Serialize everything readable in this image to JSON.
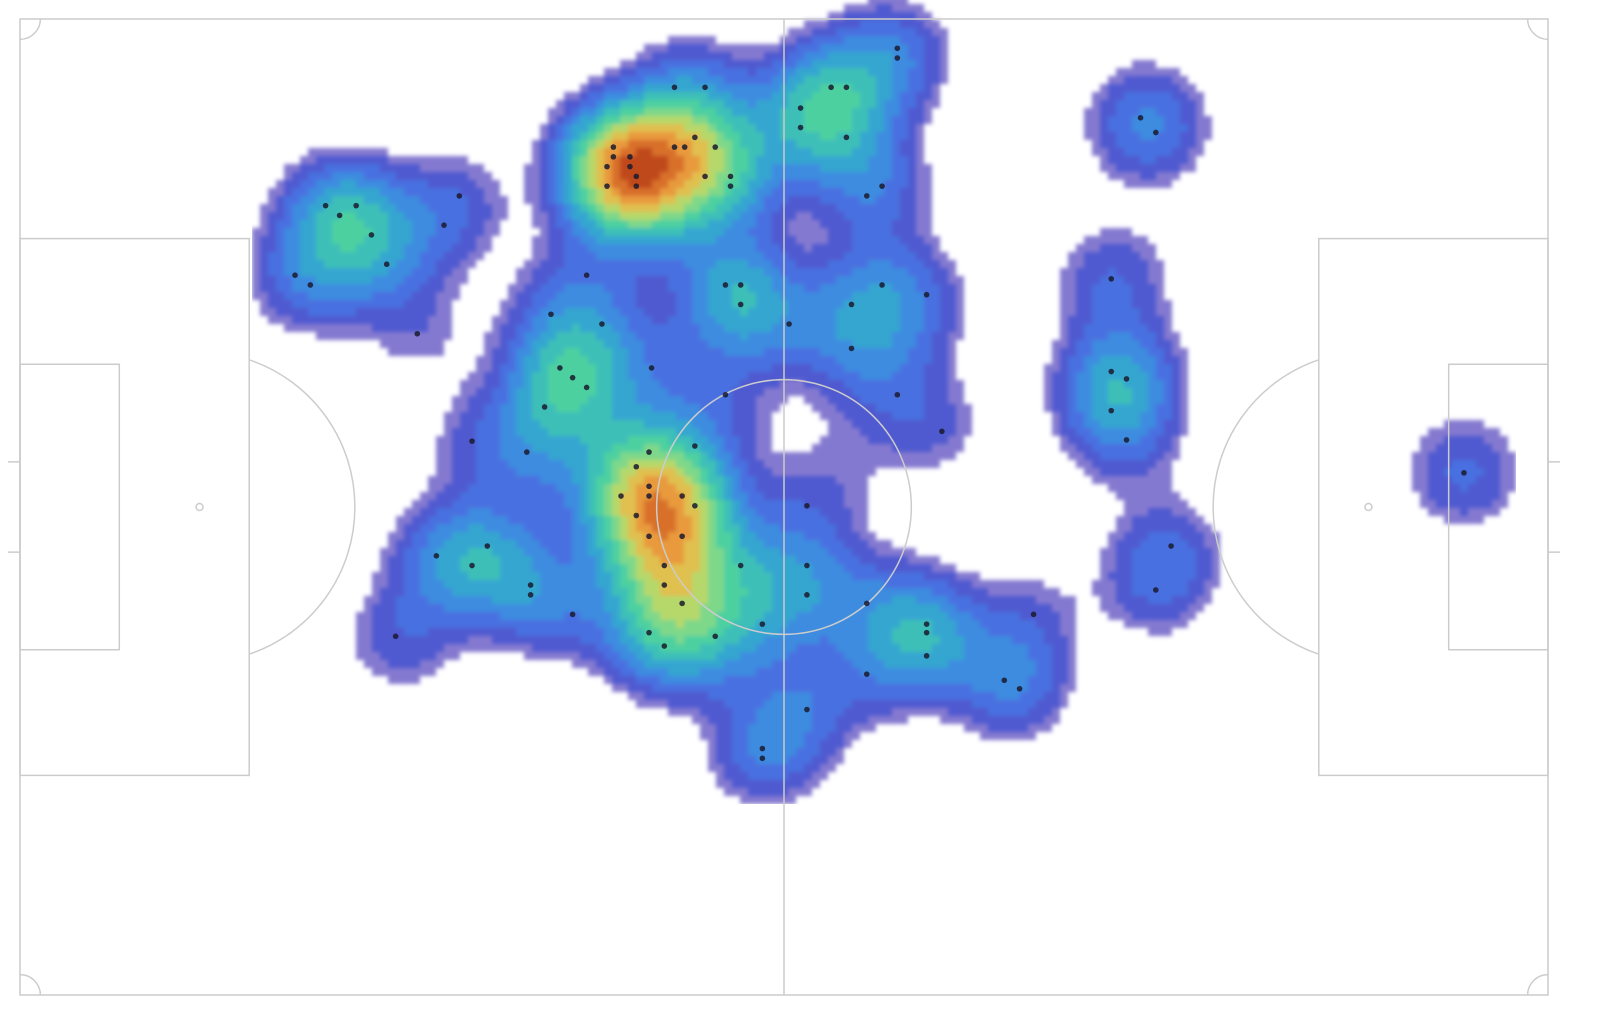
{
  "chart_data": {
    "type": "heatmap",
    "subtype": "kde-contour-on-football-pitch",
    "pitch": {
      "x_range": [
        0,
        120
      ],
      "y_range": [
        0,
        80
      ],
      "line_color": "#cccccc",
      "background": "#ffffff"
    },
    "colormap": [
      "#5b4cc0",
      "#4f5ad0",
      "#4a6fe0",
      "#3d8ce0",
      "#34a6d0",
      "#3dbfb8",
      "#4dd0a0",
      "#7ed88a",
      "#b6d86a",
      "#e0c050",
      "#e89a3c",
      "#d8702a",
      "#c04a1a"
    ],
    "points": [
      [
        68.9,
        2.4
      ],
      [
        68.9,
        3.2
      ],
      [
        63.7,
        5.6
      ],
      [
        64.9,
        5.6
      ],
      [
        51.4,
        5.6
      ],
      [
        53.8,
        5.6
      ],
      [
        61.3,
        7.3
      ],
      [
        61.3,
        8.9
      ],
      [
        64.9,
        9.7
      ],
      [
        53.0,
        9.7
      ],
      [
        51.4,
        10.5
      ],
      [
        52.2,
        10.5
      ],
      [
        54.6,
        10.5
      ],
      [
        46.6,
        10.5
      ],
      [
        46.6,
        11.3
      ],
      [
        47.9,
        11.3
      ],
      [
        46.1,
        12.1
      ],
      [
        47.9,
        12.1
      ],
      [
        48.4,
        12.9
      ],
      [
        53.8,
        12.9
      ],
      [
        55.8,
        12.9
      ],
      [
        48.4,
        13.7
      ],
      [
        46.1,
        13.7
      ],
      [
        55.8,
        13.7
      ],
      [
        67.7,
        13.7
      ],
      [
        66.5,
        14.5
      ],
      [
        34.5,
        14.5
      ],
      [
        24.0,
        15.3
      ],
      [
        26.4,
        15.3
      ],
      [
        25.1,
        16.1
      ],
      [
        33.3,
        16.9
      ],
      [
        27.6,
        17.7
      ],
      [
        28.8,
        20.1
      ],
      [
        21.6,
        21.0
      ],
      [
        22.8,
        21.8
      ],
      [
        44.5,
        21.0
      ],
      [
        55.4,
        21.8
      ],
      [
        56.6,
        21.8
      ],
      [
        67.7,
        21.8
      ],
      [
        71.2,
        22.6
      ],
      [
        56.6,
        23.4
      ],
      [
        65.3,
        23.4
      ],
      [
        41.7,
        24.2
      ],
      [
        45.7,
        25.0
      ],
      [
        60.4,
        25.0
      ],
      [
        31.2,
        25.8
      ],
      [
        65.3,
        27.0
      ],
      [
        42.4,
        28.6
      ],
      [
        49.6,
        28.6
      ],
      [
        43.4,
        29.4
      ],
      [
        44.5,
        30.2
      ],
      [
        41.2,
        31.8
      ],
      [
        55.4,
        30.8
      ],
      [
        68.9,
        30.8
      ],
      [
        72.4,
        33.8
      ],
      [
        35.5,
        34.6
      ],
      [
        39.8,
        35.5
      ],
      [
        49.4,
        35.5
      ],
      [
        53.0,
        35.0
      ],
      [
        48.4,
        36.7
      ],
      [
        49.4,
        38.3
      ],
      [
        47.2,
        39.1
      ],
      [
        52.0,
        39.1
      ],
      [
        49.4,
        39.1
      ],
      [
        53.0,
        39.9
      ],
      [
        61.8,
        39.9
      ],
      [
        48.4,
        40.7
      ],
      [
        49.4,
        42.4
      ],
      [
        52.0,
        42.4
      ],
      [
        36.7,
        43.2
      ],
      [
        32.7,
        44.0
      ],
      [
        35.5,
        44.8
      ],
      [
        50.6,
        44.8
      ],
      [
        56.6,
        44.8
      ],
      [
        61.8,
        44.8
      ],
      [
        50.6,
        46.4
      ],
      [
        40.1,
        46.4
      ],
      [
        40.1,
        47.2
      ],
      [
        61.8,
        47.2
      ],
      [
        66.5,
        47.9
      ],
      [
        52.0,
        47.9
      ],
      [
        43.4,
        48.8
      ],
      [
        79.6,
        48.8
      ],
      [
        71.2,
        49.6
      ],
      [
        71.2,
        50.3
      ],
      [
        58.3,
        49.6
      ],
      [
        29.5,
        50.6
      ],
      [
        50.6,
        51.4
      ],
      [
        49.4,
        50.3
      ],
      [
        54.6,
        50.6
      ],
      [
        71.2,
        52.2
      ],
      [
        66.5,
        53.7
      ],
      [
        77.3,
        54.2
      ],
      [
        78.5,
        54.9
      ],
      [
        61.8,
        56.6
      ],
      [
        58.3,
        59.8
      ],
      [
        58.3,
        60.6
      ],
      [
        88.0,
        8.1
      ],
      [
        89.2,
        9.3
      ],
      [
        85.7,
        21.3
      ],
      [
        85.7,
        28.9
      ],
      [
        86.9,
        29.5
      ],
      [
        85.7,
        32.1
      ],
      [
        86.9,
        34.5
      ],
      [
        90.4,
        43.2
      ],
      [
        89.2,
        46.8
      ],
      [
        113.4,
        37.2
      ]
    ],
    "blobs": [
      {
        "x": 50.0,
        "y": 14.0,
        "w": 2.6
      },
      {
        "x": 48.0,
        "y": 12.8,
        "w": 1.6
      },
      {
        "x": 63.0,
        "y": 8.5,
        "w": 1.3
      },
      {
        "x": 66.0,
        "y": 5.0,
        "w": 0.6
      },
      {
        "x": 26.0,
        "y": 18.5,
        "w": 1.2
      },
      {
        "x": 56.5,
        "y": 24.0,
        "w": 1.0
      },
      {
        "x": 68.0,
        "y": 25.5,
        "w": 1.2
      },
      {
        "x": 43.5,
        "y": 29.5,
        "w": 1.2
      },
      {
        "x": 50.5,
        "y": 40.5,
        "w": 2.4
      },
      {
        "x": 51.5,
        "y": 45.5,
        "w": 1.6
      },
      {
        "x": 52.0,
        "y": 50.5,
        "w": 1.6
      },
      {
        "x": 35.0,
        "y": 44.5,
        "w": 1.2
      },
      {
        "x": 69.5,
        "y": 49.5,
        "w": 1.0
      },
      {
        "x": 60.5,
        "y": 57.0,
        "w": 0.8
      },
      {
        "x": 58.0,
        "y": 47.0,
        "w": 0.9
      },
      {
        "x": 65.0,
        "y": 36.0,
        "w": 0.6
      },
      {
        "x": 42.0,
        "y": 36.0,
        "w": 0.9
      },
      {
        "x": 88.5,
        "y": 8.5,
        "w": 0.8
      },
      {
        "x": 86.0,
        "y": 21.5,
        "w": 0.8
      },
      {
        "x": 86.5,
        "y": 30.5,
        "w": 1.1
      },
      {
        "x": 89.5,
        "y": 45.0,
        "w": 0.8
      },
      {
        "x": 113.4,
        "y": 37.2,
        "w": 1.0
      },
      {
        "x": 30.5,
        "y": 51.0,
        "w": 0.6
      },
      {
        "x": 77.5,
        "y": 53.5,
        "w": 0.6
      }
    ]
  }
}
